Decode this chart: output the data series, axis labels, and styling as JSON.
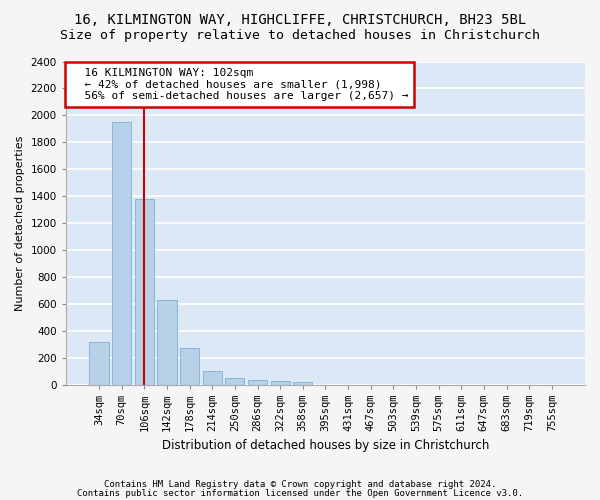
{
  "title1": "16, KILMINGTON WAY, HIGHCLIFFE, CHRISTCHURCH, BH23 5BL",
  "title2": "Size of property relative to detached houses in Christchurch",
  "xlabel": "Distribution of detached houses by size in Christchurch",
  "ylabel": "Number of detached properties",
  "bar_color": "#b8d0e8",
  "bar_edge_color": "#7aafd4",
  "categories": [
    "34sqm",
    "70sqm",
    "106sqm",
    "142sqm",
    "178sqm",
    "214sqm",
    "250sqm",
    "286sqm",
    "322sqm",
    "358sqm",
    "395sqm",
    "431sqm",
    "467sqm",
    "503sqm",
    "539sqm",
    "575sqm",
    "611sqm",
    "647sqm",
    "683sqm",
    "719sqm",
    "755sqm"
  ],
  "values": [
    315,
    1950,
    1380,
    630,
    270,
    100,
    48,
    35,
    28,
    20,
    0,
    0,
    0,
    0,
    0,
    0,
    0,
    0,
    0,
    0,
    0
  ],
  "ylim": [
    0,
    2400
  ],
  "yticks": [
    0,
    200,
    400,
    600,
    800,
    1000,
    1200,
    1400,
    1600,
    1800,
    2000,
    2200,
    2400
  ],
  "vline_x": 2.0,
  "vline_color": "#cc0000",
  "annotation_line1": "  16 KILMINGTON WAY: 102sqm",
  "annotation_line2": "  ← 42% of detached houses are smaller (1,998)",
  "annotation_line3": "  56% of semi-detached houses are larger (2,657) →",
  "annotation_box_color": "#ffffff",
  "annotation_box_edge": "#cc0000",
  "footer1": "Contains HM Land Registry data © Crown copyright and database right 2024.",
  "footer2": "Contains public sector information licensed under the Open Government Licence v3.0.",
  "bg_color": "#dce8f5",
  "plot_bg_color": "#dce8f5",
  "fig_bg_color": "#f5f5f5",
  "grid_color": "#ffffff",
  "title1_fontsize": 10,
  "title2_fontsize": 9.5,
  "axis_fontsize": 8,
  "tick_fontsize": 7.5,
  "footer_fontsize": 6.5,
  "bar_width": 0.85
}
